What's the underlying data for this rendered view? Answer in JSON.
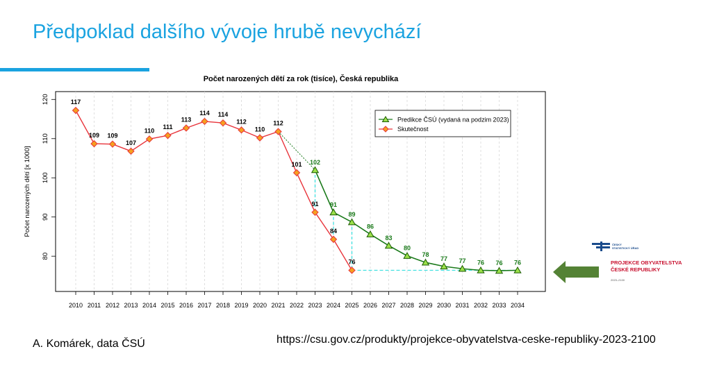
{
  "slide": {
    "title": "Předpoklad dalšího vývoje hrubě nevychází",
    "author": "A. Komárek, data ČSÚ",
    "source_url": "https://csu.gov.cz/produkty/projekce-obyvatelstva-ceske-republiky-2023-2100"
  },
  "logo": {
    "small_text": "ČESKÝ STATISTICKÝ ÚŘAD",
    "line1": "PROJEKCE OBYVATELSTVA",
    "line2": "ČESKÉ REPUBLIKY",
    "years": "2023–2100"
  },
  "colors": {
    "accent": "#1aa3e0",
    "prediction": "#1a7a1a",
    "actual": "#e8333a",
    "actual_marker_fill": "#f5a020",
    "reference_line": "#40e0e0",
    "arrow": "#548235"
  },
  "chart_data": {
    "type": "line",
    "title": "Počet narozených dětí za rok (tisíce), Česká republika",
    "xlabel": "",
    "ylabel": "Počet narozených dětí [x 1000]",
    "ylim": [
      71,
      122
    ],
    "yticks": [
      80,
      90,
      100,
      110,
      120
    ],
    "x": [
      2010,
      2011,
      2012,
      2013,
      2014,
      2015,
      2016,
      2017,
      2018,
      2019,
      2020,
      2021,
      2022,
      2023,
      2024,
      2025,
      2026,
      2027,
      2028,
      2029,
      2030,
      2031,
      2032,
      2033,
      2034
    ],
    "grid": true,
    "legend_position": "top-right",
    "series": [
      {
        "name": "Predikce ČSÚ (vydaná na podzim 2023)",
        "x": [
          2023,
          2024,
          2025,
          2026,
          2027,
          2028,
          2029,
          2030,
          2031,
          2032,
          2033,
          2034
        ],
        "values": [
          102,
          91.2,
          88.7,
          85.6,
          82.7,
          80.1,
          78.4,
          77.4,
          76.8,
          76.4,
          76.3,
          76.4
        ],
        "labels": [
          "102",
          "91",
          "89",
          "86",
          "83",
          "80",
          "78",
          "77",
          "77",
          "76",
          "76",
          "76"
        ],
        "bridge_from": {
          "x": 2021,
          "value": 111.8
        }
      },
      {
        "name": "Skutečnost",
        "x": [
          2010,
          2011,
          2012,
          2013,
          2014,
          2015,
          2016,
          2017,
          2018,
          2019,
          2020,
          2021,
          2022,
          2023,
          2024,
          2025
        ],
        "values": [
          117.2,
          108.7,
          108.6,
          106.8,
          109.9,
          110.8,
          112.7,
          114.4,
          114.0,
          112.2,
          110.2,
          111.8,
          101.3,
          91.2,
          84.3,
          76.4
        ],
        "labels": [
          "117",
          "109",
          "109",
          "107",
          "110",
          "111",
          "113",
          "114",
          "114",
          "112",
          "110",
          "112",
          "101",
          "91",
          "84",
          "76"
        ]
      }
    ],
    "annotations": {
      "vertical_dashed_at": [
        2023,
        2024,
        2025
      ],
      "horizontal_dashed_value": 76.4,
      "horizontal_dashed_from": 2025,
      "horizontal_dashed_to": 2034
    }
  }
}
